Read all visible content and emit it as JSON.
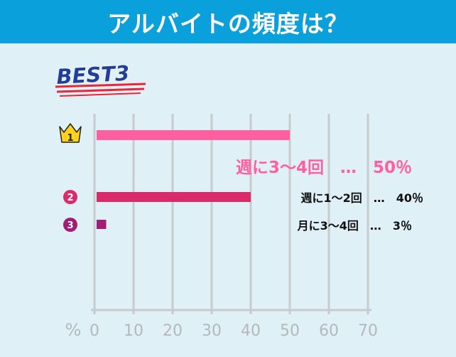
{
  "header": {
    "title": "アルバイトの頻度は？"
  },
  "badge": {
    "text": "BEST3"
  },
  "chart_data": {
    "type": "bar",
    "orientation": "horizontal",
    "categories": [
      "週に3～4回",
      "週に1～2回",
      "月に3～4回"
    ],
    "values": [
      50,
      40,
      3
    ],
    "unit": "%",
    "ranks": [
      "1",
      "2",
      "3"
    ],
    "labels": [
      "週に3～4回　…　50％",
      "週に1～2回　…　40％",
      "月に3～4回　…　3％"
    ],
    "xlim": [
      0,
      70
    ],
    "xticks": [
      "0",
      "10",
      "20",
      "30",
      "40",
      "50",
      "60",
      "70"
    ],
    "xlabel": "%",
    "grid": true,
    "colors": [
      "#ff5fa0",
      "#d92a6a",
      "#a01e78"
    ],
    "text_colors": [
      "#ff5fa0",
      "#111111",
      "#111111"
    ],
    "crown_color": "#ffd21a"
  }
}
